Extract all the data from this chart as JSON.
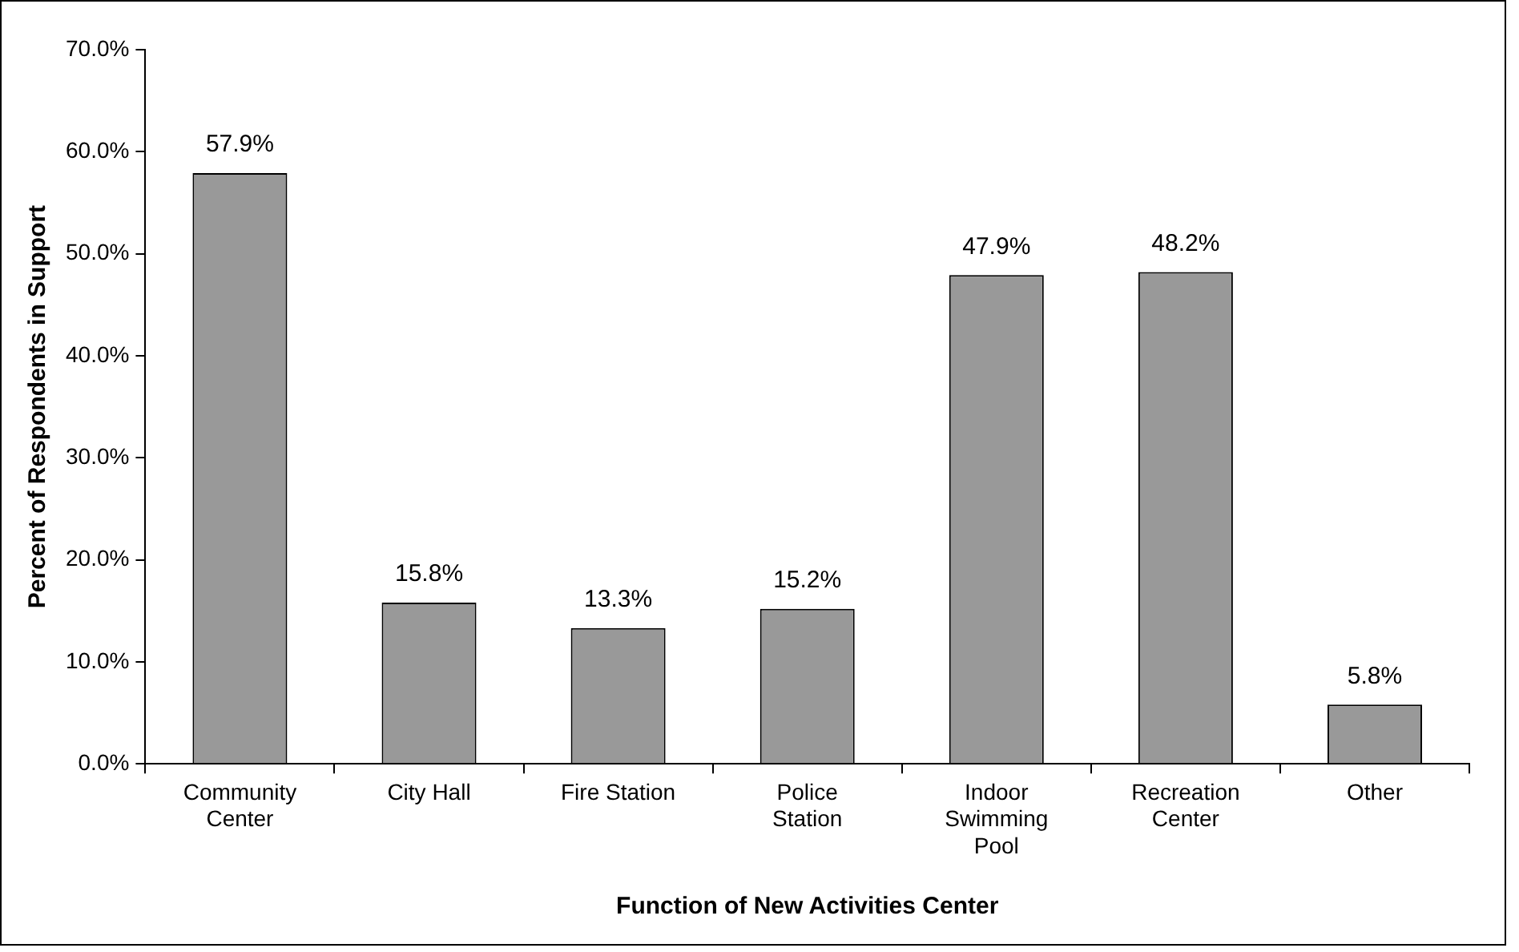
{
  "chart_data": {
    "type": "bar",
    "xlabel": "Function of New Activities Center",
    "ylabel": "Percent of Respondents in Support",
    "categories": [
      "Community Center",
      "City Hall",
      "Fire Station",
      "Police Station",
      "Indoor Swimming Pool",
      "Recreation Center",
      "Other"
    ],
    "values": [
      57.9,
      15.8,
      13.3,
      15.2,
      47.9,
      48.2,
      5.8
    ],
    "value_labels": [
      "57.9%",
      "15.8%",
      "13.3%",
      "15.2%",
      "47.9%",
      "48.2%",
      "5.8%"
    ],
    "color": "#999999",
    "ylim": [
      0,
      70
    ],
    "yticks": [
      {
        "value": 0,
        "label": "0.0%"
      },
      {
        "value": 10,
        "label": "10.0%"
      },
      {
        "value": 20,
        "label": "20.0%"
      },
      {
        "value": 30,
        "label": "30.0%"
      },
      {
        "value": 40,
        "label": "40.0%"
      },
      {
        "value": 50,
        "label": "50.0%"
      },
      {
        "value": 60,
        "label": "60.0%"
      },
      {
        "value": 70,
        "label": "70.0%"
      }
    ],
    "grid": false,
    "legend": false
  }
}
